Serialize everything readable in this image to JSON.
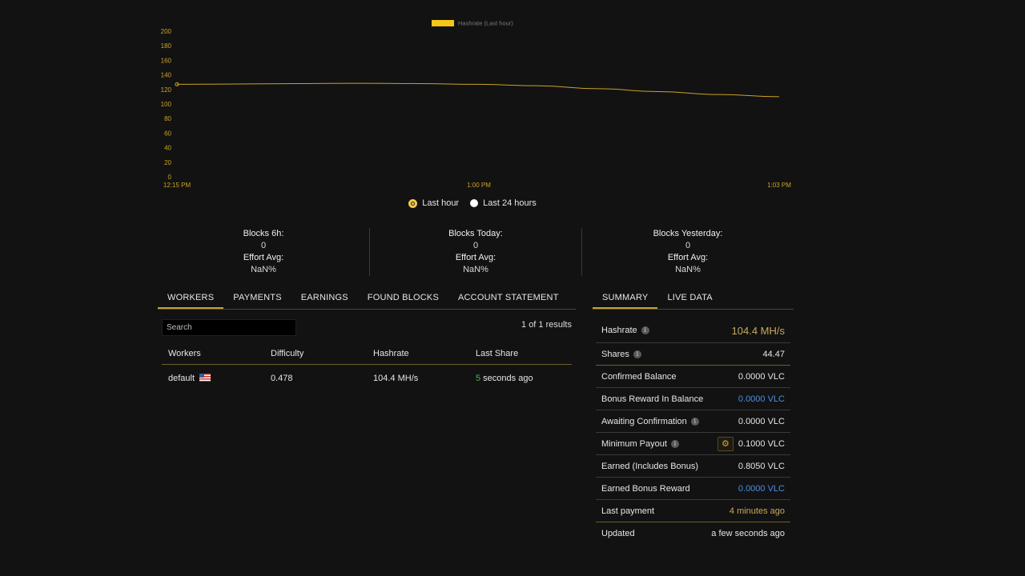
{
  "chart_data": {
    "type": "line",
    "legend": "Hashrate (Last hour)",
    "legend_position": "top-center",
    "series_color": "#f5c518",
    "y_ticks": [
      "0",
      "20",
      "40",
      "60",
      "80",
      "100",
      "120",
      "140",
      "160",
      "180",
      "200"
    ],
    "ylim": [
      0,
      200
    ],
    "x_labels": [
      "12:15 PM",
      "1:00 PM",
      "1:03 PM"
    ],
    "x": [
      "12:15 PM",
      "12:20 PM",
      "12:25 PM",
      "12:30 PM",
      "12:35 PM",
      "12:40 PM",
      "12:45 PM",
      "12:50 PM",
      "12:55 PM",
      "1:00 PM",
      "1:03 PM"
    ],
    "values": [
      127,
      127.5,
      128,
      128.5,
      128,
      127,
      125,
      121,
      117,
      113,
      110
    ]
  },
  "range": {
    "last_hour": "Last hour",
    "last_24": "Last 24 hours"
  },
  "stats": [
    {
      "label": "Blocks 6h:",
      "value": "0",
      "effort_label": "Effort Avg:",
      "effort": "NaN%"
    },
    {
      "label": "Blocks Today:",
      "value": "0",
      "effort_label": "Effort Avg:",
      "effort": "NaN%"
    },
    {
      "label": "Blocks Yesterday:",
      "value": "0",
      "effort_label": "Effort Avg:",
      "effort": "NaN%"
    }
  ],
  "left_tabs": [
    "WORKERS",
    "PAYMENTS",
    "EARNINGS",
    "FOUND BLOCKS",
    "ACCOUNT STATEMENT"
  ],
  "right_tabs": [
    "SUMMARY",
    "LIVE DATA"
  ],
  "search": {
    "placeholder": "Search"
  },
  "results": "1 of 1 results",
  "workers_table": {
    "headers": [
      "Workers",
      "Difficulty",
      "Hashrate",
      "Last Share"
    ],
    "rows": [
      {
        "name": "default",
        "difficulty": "0.478",
        "hashrate": "104.4 MH/s",
        "last_share_num": "5",
        "last_share_text": " seconds ago"
      }
    ]
  },
  "summary": {
    "hashrate_label": "Hashrate",
    "hashrate": "104.4 MH/s",
    "shares_label": "Shares",
    "shares": "44.47",
    "confirmed_label": "Confirmed Balance",
    "confirmed": "0.0000 VLC",
    "bonus_balance_label": "Bonus Reward In Balance",
    "bonus_balance": "0.0000 VLC",
    "awaiting_label": "Awaiting Confirmation",
    "awaiting": "0.0000 VLC",
    "min_payout_label": "Minimum Payout",
    "min_payout": "0.1000 VLC",
    "earned_label": "Earned (Includes Bonus)",
    "earned": "0.8050 VLC",
    "earned_bonus_label": "Earned Bonus Reward",
    "earned_bonus": "0.0000 VLC",
    "last_payment_label": "Last payment",
    "last_payment": "4 minutes ago",
    "updated_label": "Updated",
    "updated": "a few seconds ago"
  },
  "icons": {
    "info": "i",
    "gear": "⚙"
  }
}
